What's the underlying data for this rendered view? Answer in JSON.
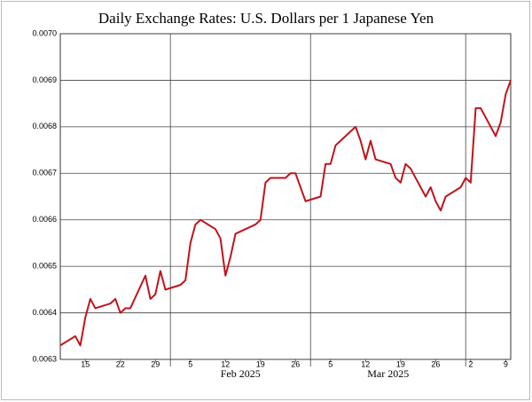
{
  "chart_data": {
    "type": "line",
    "title": "Daily Exchange Rates: U.S. Dollars per 1 Japanese Yen",
    "x": [
      "2025-01-10",
      "2025-01-13",
      "2025-01-14",
      "2025-01-15",
      "2025-01-16",
      "2025-01-17",
      "2025-01-20",
      "2025-01-21",
      "2025-01-22",
      "2025-01-23",
      "2025-01-24",
      "2025-01-27",
      "2025-01-28",
      "2025-01-29",
      "2025-01-30",
      "2025-01-31",
      "2025-02-03",
      "2025-02-04",
      "2025-02-05",
      "2025-02-06",
      "2025-02-07",
      "2025-02-10",
      "2025-02-11",
      "2025-02-12",
      "2025-02-13",
      "2025-02-14",
      "2025-02-18",
      "2025-02-19",
      "2025-02-20",
      "2025-02-21",
      "2025-02-24",
      "2025-02-25",
      "2025-02-26",
      "2025-02-28",
      "2025-03-03",
      "2025-03-04",
      "2025-03-05",
      "2025-03-06",
      "2025-03-07",
      "2025-03-10",
      "2025-03-11",
      "2025-03-12",
      "2025-03-13",
      "2025-03-14",
      "2025-03-17",
      "2025-03-18",
      "2025-03-19",
      "2025-03-20",
      "2025-03-21",
      "2025-03-24",
      "2025-03-25",
      "2025-03-26",
      "2025-03-27",
      "2025-03-28",
      "2025-03-31",
      "2025-04-01",
      "2025-04-02",
      "2025-04-03",
      "2025-04-04",
      "2025-04-07",
      "2025-04-08",
      "2025-04-09",
      "2025-04-10"
    ],
    "series": [
      {
        "name": "USD per JPY",
        "color": "#c0141c",
        "values": [
          0.00633,
          0.00635,
          0.00633,
          0.00639,
          0.00643,
          0.00641,
          0.00642,
          0.00643,
          0.0064,
          0.00641,
          0.00641,
          0.00648,
          0.00643,
          0.00644,
          0.00649,
          0.00645,
          0.00646,
          0.00647,
          0.00655,
          0.00659,
          0.0066,
          0.00658,
          0.00656,
          0.00648,
          0.00652,
          0.00657,
          0.00659,
          0.0066,
          0.00668,
          0.00669,
          0.00669,
          0.0067,
          0.0067,
          0.00664,
          0.00665,
          0.00672,
          0.00672,
          0.00676,
          0.00677,
          0.0068,
          0.00677,
          0.00673,
          0.00677,
          0.00673,
          0.00672,
          0.00669,
          0.00668,
          0.00672,
          0.00671,
          0.00665,
          0.00667,
          0.00664,
          0.00662,
          0.00665,
          0.00667,
          0.00669,
          0.00668,
          0.00684,
          0.00684,
          0.00678,
          0.00681,
          0.00687,
          0.0069
        ]
      }
    ],
    "xlim": [
      "2025-01-10",
      "2025-04-10"
    ],
    "xticks": [
      {
        "value": "2025-01-15",
        "label": "15"
      },
      {
        "value": "2025-01-22",
        "label": "22"
      },
      {
        "value": "2025-01-29",
        "label": "29"
      },
      {
        "value": "2025-02-05",
        "label": "5"
      },
      {
        "value": "2025-02-12",
        "label": "12"
      },
      {
        "value": "2025-02-19",
        "label": "19"
      },
      {
        "value": "2025-02-26",
        "label": "26"
      },
      {
        "value": "2025-03-05",
        "label": "5"
      },
      {
        "value": "2025-03-12",
        "label": "12"
      },
      {
        "value": "2025-03-19",
        "label": "19"
      },
      {
        "value": "2025-03-26",
        "label": "26"
      },
      {
        "value": "2025-04-02",
        "label": "2"
      },
      {
        "value": "2025-04-09",
        "label": "9"
      }
    ],
    "month_lines": [
      "2025-02-01",
      "2025-03-01",
      "2025-04-01"
    ],
    "month_labels": [
      {
        "value": "2025-02",
        "label": "Feb 2025"
      },
      {
        "value": "2025-03",
        "label": "Mar 2025"
      }
    ],
    "ylim": [
      0.0063,
      0.007
    ],
    "yticks": [
      0.0063,
      0.0064,
      0.0065,
      0.0066,
      0.0067,
      0.0068,
      0.0069,
      {
        "value": 0.007,
        "label": "0.0070"
      }
    ],
    "grid": true
  }
}
